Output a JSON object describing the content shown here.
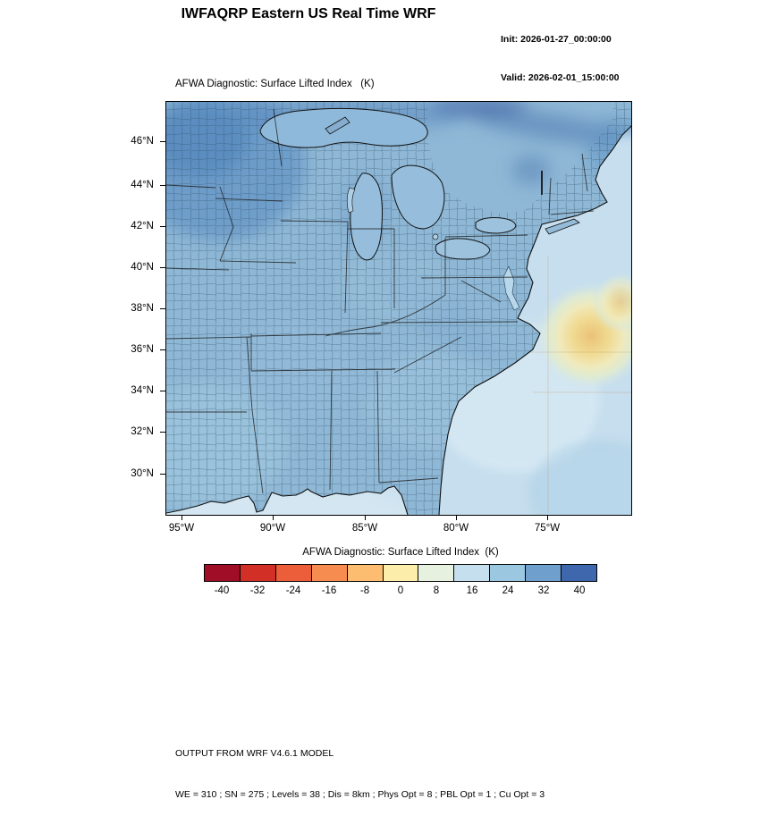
{
  "header": {
    "title": "IWFAQRP Eastern US Real Time WRF",
    "init": "Init: 2026-01-27_00:00:00",
    "valid": "Valid: 2026-02-01_15:00:00"
  },
  "map": {
    "title": "AFWA Diagnostic: Surface Lifted Index   (K)",
    "y_ticks": [
      "46°N",
      "44°N",
      "42°N",
      "40°N",
      "38°N",
      "36°N",
      "34°N",
      "32°N",
      "30°N"
    ],
    "x_ticks": [
      "95°W",
      "90°W",
      "85°W",
      "80°W",
      "75°W"
    ]
  },
  "colorbar": {
    "title": "AFWA Diagnostic: Surface Lifted Index  (K)",
    "tick_labels": [
      "-40",
      "-32",
      "-24",
      "-16",
      "-8",
      "0",
      "8",
      "16",
      "24",
      "32",
      "40"
    ],
    "colors": [
      "#a00d26",
      "#d23027",
      "#ec5e3a",
      "#f78c51",
      "#fdbd71",
      "#fcedaa",
      "#e7f1e0",
      "#c6dfee",
      "#9cc7e1",
      "#6f9fcc",
      "#3f67ad"
    ]
  },
  "footer": {
    "line1": "OUTPUT FROM WRF V4.6.1 MODEL",
    "line2": "WE = 310 ; SN = 275 ; Levels = 38 ; Dis = 8km ; Phys Opt = 8 ; PBL Opt = 1 ; Cu Opt = 3"
  },
  "chart_data": {
    "type": "heatmap",
    "title": "AFWA Diagnostic: Surface Lifted Index (K)",
    "units": "K",
    "x_axis": {
      "ticks": [
        "95°W",
        "90°W",
        "85°W",
        "80°W",
        "75°W"
      ],
      "approx_range": [
        "96.5°W",
        "70.5°W"
      ]
    },
    "y_axis": {
      "ticks": [
        "46°N",
        "44°N",
        "42°N",
        "40°N",
        "38°N",
        "36°N",
        "34°N",
        "32°N",
        "30°N"
      ],
      "approx_range": [
        "28°N",
        "48°N"
      ]
    },
    "contour_levels": [
      -40,
      -32,
      -24,
      -16,
      -8,
      0,
      8,
      16,
      24,
      32,
      40
    ],
    "palette": [
      "#a00d26",
      "#d23027",
      "#ec5e3a",
      "#f78c51",
      "#fdbd71",
      "#fcedaa",
      "#e7f1e0",
      "#c6dfee",
      "#9cc7e1",
      "#6f9fcc",
      "#3f67ad"
    ],
    "legend_position": "bottom",
    "grid": false,
    "regions": [
      {
        "area": "upper Midwest (Minnesota / Wisconsin / upper Michigan)",
        "approx_values": "28 to 40"
      },
      {
        "area": "most of eastern US land",
        "approx_values": "20 to 32"
      },
      {
        "area": "far north / St. Lawrence valley band",
        "approx_values": "32 to 44 (darkest blue)"
      },
      {
        "area": "Gulf of Mexico and southeast coastal Atlantic",
        "approx_values": "12 to 24"
      },
      {
        "area": "open Atlantic off Virginia / Carolinas",
        "approx_values": "-8 to 8 (yellow minimum)"
      }
    ]
  }
}
